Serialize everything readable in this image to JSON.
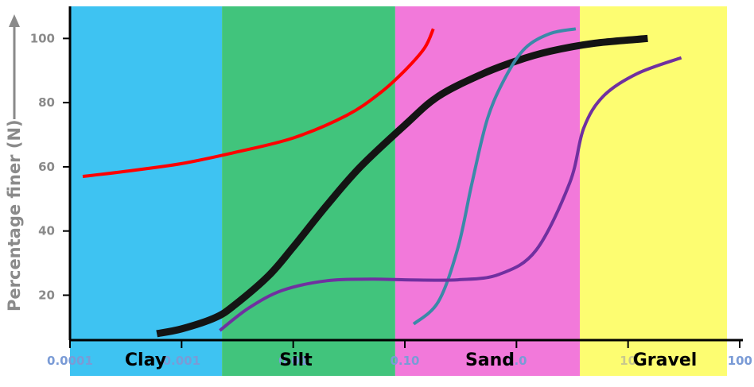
{
  "chart_data": {
    "type": "line",
    "ylabel": "Percentage finer (N)",
    "xlabel": "",
    "x_scale": "log",
    "xlim": [
      0.0001,
      100
    ],
    "ylim": [
      6,
      110
    ],
    "x_ticks": [
      {
        "value": 0.0001,
        "label": "0.0001"
      },
      {
        "value": 0.001,
        "label": "0.001"
      },
      {
        "value": 0.01,
        "label": "0.01"
      },
      {
        "value": 0.1,
        "label": "0.10"
      },
      {
        "value": 1,
        "label": "1.0"
      },
      {
        "value": 10,
        "label": "10"
      },
      {
        "value": 100,
        "label": "100"
      }
    ],
    "y_ticks": [
      20,
      40,
      60,
      80,
      100
    ],
    "regions": [
      {
        "name": "Clay",
        "x_start": 0.0001,
        "x_end": 0.0023,
        "color": "#3ec3f2"
      },
      {
        "name": "Silt",
        "x_start": 0.0023,
        "x_end": 0.082,
        "color": "#41c47c"
      },
      {
        "name": "Sand",
        "x_start": 0.082,
        "x_end": 3.7,
        "color": "#f279da"
      },
      {
        "name": "Gravel",
        "x_start": 3.7,
        "x_end": 77,
        "color": "#fdfd71"
      }
    ],
    "series": [
      {
        "color": "#ff0000",
        "width": 4,
        "points": [
          [
            0.00013,
            57
          ],
          [
            0.0003,
            58.5
          ],
          [
            0.001,
            61
          ],
          [
            0.003,
            64.5
          ],
          [
            0.01,
            69
          ],
          [
            0.03,
            76
          ],
          [
            0.06,
            83
          ],
          [
            0.1,
            90
          ],
          [
            0.15,
            97
          ],
          [
            0.18,
            103
          ]
        ]
      },
      {
        "color": "#141414",
        "width": 9,
        "points": [
          [
            0.0006,
            8
          ],
          [
            0.001,
            9.5
          ],
          [
            0.002,
            13
          ],
          [
            0.003,
            17
          ],
          [
            0.006,
            26
          ],
          [
            0.01,
            35
          ],
          [
            0.02,
            48
          ],
          [
            0.04,
            60
          ],
          [
            0.1,
            73
          ],
          [
            0.2,
            82
          ],
          [
            0.5,
            89
          ],
          [
            1,
            93
          ],
          [
            2,
            96
          ],
          [
            5,
            98.5
          ],
          [
            15,
            100
          ]
        ]
      },
      {
        "color": "#3a8aa8",
        "width": 4,
        "points": [
          [
            0.12,
            11
          ],
          [
            0.2,
            18
          ],
          [
            0.3,
            35
          ],
          [
            0.4,
            55
          ],
          [
            0.55,
            75
          ],
          [
            0.8,
            88
          ],
          [
            1.2,
            97
          ],
          [
            2,
            101.5
          ],
          [
            3.4,
            103
          ]
        ]
      },
      {
        "color": "#7030a0",
        "width": 4,
        "points": [
          [
            0.0022,
            9
          ],
          [
            0.004,
            16
          ],
          [
            0.008,
            21.5
          ],
          [
            0.02,
            24.5
          ],
          [
            0.05,
            25
          ],
          [
            0.1,
            24.8
          ],
          [
            0.3,
            24.8
          ],
          [
            0.7,
            26.5
          ],
          [
            1.5,
            34
          ],
          [
            3,
            55
          ],
          [
            4,
            72
          ],
          [
            6,
            82
          ],
          [
            12,
            89
          ],
          [
            30,
            94
          ]
        ]
      }
    ]
  }
}
